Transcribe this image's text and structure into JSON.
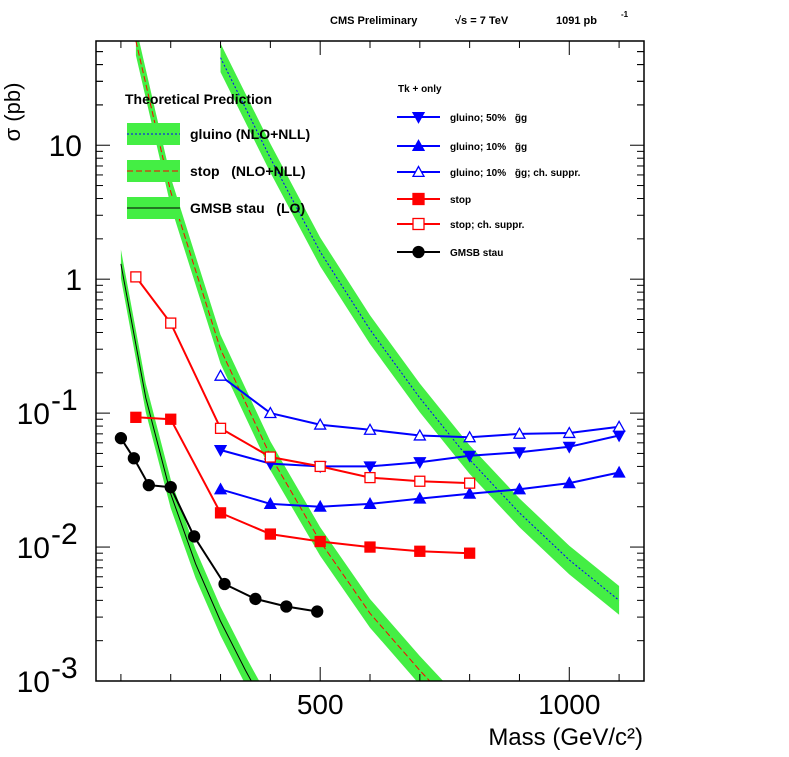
{
  "header": {
    "experiment": "CMS Preliminary",
    "sqrt_s": "√s = 7 TeV",
    "luminosity": "1091 pb",
    "lumi_exp": "-1"
  },
  "chart_data": {
    "type": "line",
    "title": "CMS Preliminary   √s = 7 TeV   1091 pb-1",
    "xlabel": "Mass (GeV/c²)",
    "ylabel": "σ (pb)",
    "xlim": [
      50,
      1150
    ],
    "ylim": [
      0.001,
      60
    ],
    "yscale": "log",
    "x_ticks": [
      {
        "value": 500,
        "label": "500"
      },
      {
        "value": 1000,
        "label": "1000"
      }
    ],
    "y_ticks": [
      {
        "value": 0.001,
        "base": "10",
        "exp": "-3"
      },
      {
        "value": 0.01,
        "base": "10",
        "exp": "-2"
      },
      {
        "value": 0.1,
        "base": "10",
        "exp": "-1"
      },
      {
        "value": 1,
        "base": "1",
        "exp": ""
      },
      {
        "value": 10,
        "base": "10",
        "exp": ""
      }
    ],
    "theory_legend_title": "Theoretical Prediction",
    "theory": [
      {
        "name": "gluino (NLO+NLL)",
        "color": "#0000ff",
        "dash": "2,2",
        "band": "#44ee44",
        "x": [
          300,
          400,
          500,
          600,
          700,
          800,
          900,
          1000,
          1100
        ],
        "y": [
          45,
          8,
          1.6,
          0.42,
          0.13,
          0.045,
          0.018,
          0.008,
          0.004
        ]
      },
      {
        "name": "stop   (NLO+NLL)",
        "color": "#ff0000",
        "dash": "6,3",
        "band": "#44ee44",
        "x": [
          130,
          200,
          300,
          400,
          500,
          600,
          700,
          800
        ],
        "y": [
          60,
          4.5,
          0.3,
          0.048,
          0.011,
          0.0032,
          0.0012,
          0.00048
        ]
      },
      {
        "name": "GMSB stau   (LO)",
        "color": "#000000",
        "dash": "",
        "band": "#44ee44",
        "x": [
          100,
          150,
          200,
          250,
          300,
          350,
          400
        ],
        "y": [
          1.3,
          0.13,
          0.025,
          0.0075,
          0.0028,
          0.0012,
          0.00055
        ]
      }
    ],
    "exp_legend_title": "Tk + only",
    "series": [
      {
        "name": "gluino; 50% ",
        "gg": "g̃g",
        "suffix": "",
        "color": "#0000ff",
        "marker": "tri-down-filled",
        "x": [
          300,
          400,
          500,
          600,
          700,
          800,
          900,
          1000,
          1100
        ],
        "y": [
          0.053,
          0.042,
          0.04,
          0.04,
          0.043,
          0.048,
          0.051,
          0.056,
          0.068
        ]
      },
      {
        "name": "gluino; 10% ",
        "gg": "g̃g",
        "suffix": "",
        "color": "#0000ff",
        "marker": "tri-up-filled",
        "x": [
          300,
          400,
          500,
          600,
          700,
          800,
          900,
          1000,
          1100
        ],
        "y": [
          0.027,
          0.021,
          0.02,
          0.021,
          0.023,
          0.025,
          0.027,
          0.03,
          0.036
        ]
      },
      {
        "name": "gluino; 10% ",
        "gg": "g̃g",
        "suffix": "; ch. suppr.",
        "color": "#0000ff",
        "marker": "tri-up-open",
        "x": [
          300,
          400,
          500,
          600,
          700,
          800,
          900,
          1000,
          1100
        ],
        "y": [
          0.19,
          0.1,
          0.082,
          0.075,
          0.068,
          0.066,
          0.07,
          0.071,
          0.079
        ]
      },
      {
        "name": "stop",
        "gg": "",
        "suffix": "",
        "color": "#ff0000",
        "marker": "square-filled",
        "x": [
          130,
          200,
          300,
          400,
          500,
          600,
          700,
          800
        ],
        "y": [
          0.093,
          0.09,
          0.018,
          0.0125,
          0.011,
          0.01,
          0.0093,
          0.009
        ]
      },
      {
        "name": "stop; ch. suppr.",
        "gg": "",
        "suffix": "",
        "color": "#ff0000",
        "marker": "square-open",
        "x": [
          130,
          200,
          300,
          400,
          500,
          600,
          700,
          800
        ],
        "y": [
          1.04,
          0.47,
          0.077,
          0.047,
          0.04,
          0.033,
          0.031,
          0.03
        ]
      },
      {
        "name": "GMSB stau",
        "gg": "",
        "suffix": "",
        "color": "#000000",
        "marker": "circle-filled",
        "x": [
          100,
          126,
          156,
          200,
          247,
          308,
          370,
          432,
          494
        ],
        "y": [
          0.065,
          0.046,
          0.029,
          0.028,
          0.012,
          0.0053,
          0.0041,
          0.0036,
          0.0033
        ]
      }
    ]
  }
}
